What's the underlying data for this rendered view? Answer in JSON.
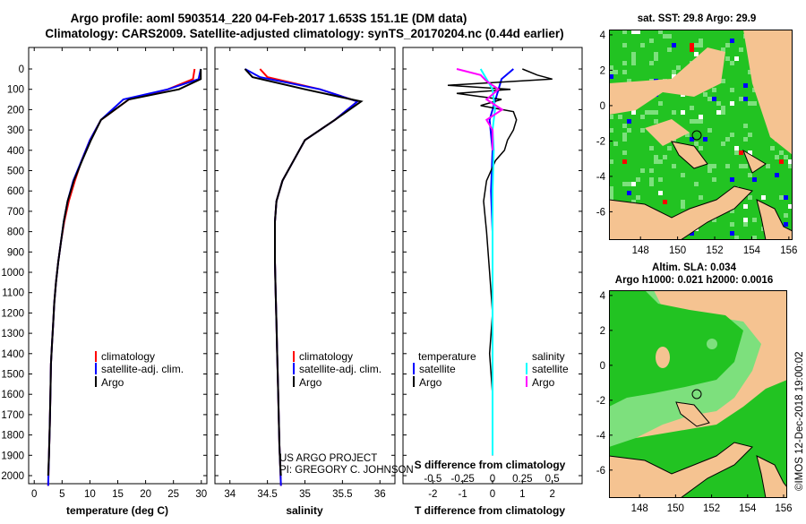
{
  "header": {
    "line1": "Argo profile: aoml 5903514_220 04-Feb-2017 1.653S 151.1E (DM data)",
    "line2": "Climatology: CARS2009. Satellite-adjusted climatology: synTS_20170204.nc (0.44d earlier)"
  },
  "colors": {
    "climatology": "#ff0000",
    "satellite": "#0000ff",
    "argo": "#000000",
    "salinity_satellite": "#00ffff",
    "salinity_argo": "#ff00ff",
    "land": "#f5c391",
    "ocean": "#22c322",
    "light_ocean": "#7de07d"
  },
  "depth_axis": {
    "ticks": [
      "0",
      "100",
      "200",
      "300",
      "400",
      "500",
      "600",
      "700",
      "800",
      "900",
      "1000",
      "1100",
      "1200",
      "1300",
      "1400",
      "1500",
      "1600",
      "1700",
      "1800",
      "1900",
      "2000"
    ]
  },
  "chart_data": [
    {
      "type": "line",
      "title": "temperature profile",
      "xlabel": "temperature (deg C)",
      "xlim": [
        -1,
        31
      ],
      "ylim": [
        0,
        2060
      ],
      "xticks": [
        "0",
        "5",
        "10",
        "15",
        "20",
        "25",
        "30"
      ],
      "legend": {
        "climatology": "climatology",
        "satellite": "satellite-adj. clim.",
        "argo": "Argo"
      },
      "series": [
        {
          "name": "climatology",
          "color": "#ff0000",
          "x": [
            28.8,
            28.5,
            24.0,
            17.0,
            12.0,
            10.0,
            8.5,
            7.3,
            6.2,
            5.4,
            4.8,
            4.3,
            3.9,
            3.6,
            3.4,
            3.2,
            3.0,
            2.9,
            2.8,
            2.65,
            2.5
          ],
          "y": [
            0,
            50,
            100,
            150,
            250,
            350,
            450,
            550,
            650,
            750,
            850,
            950,
            1050,
            1150,
            1250,
            1350,
            1450,
            1600,
            1750,
            1900,
            2050
          ]
        },
        {
          "name": "satellite",
          "color": "#0000ff",
          "x": [
            29.9,
            29.5,
            24.0,
            16.0,
            12.0,
            10.0,
            8.5,
            7.0,
            6.0,
            5.3,
            4.8,
            4.3,
            3.9,
            3.6,
            3.4,
            3.2,
            3.0,
            2.9,
            2.8,
            2.65,
            2.5
          ],
          "y": [
            0,
            50,
            100,
            150,
            250,
            350,
            450,
            550,
            650,
            750,
            850,
            950,
            1050,
            1150,
            1250,
            1350,
            1450,
            1600,
            1750,
            1900,
            2050
          ]
        },
        {
          "name": "Argo",
          "color": "#000000",
          "x": [
            29.9,
            29.9,
            26.0,
            17.0,
            12.0,
            10.2,
            8.6,
            7.1,
            6.0,
            5.3,
            4.8,
            4.3,
            3.9,
            3.6,
            3.4,
            3.2,
            3.0,
            2.9,
            2.8,
            2.65,
            2.5
          ],
          "y": [
            0,
            50,
            100,
            150,
            250,
            350,
            450,
            550,
            650,
            750,
            850,
            950,
            1050,
            1150,
            1250,
            1350,
            1450,
            1600,
            1750,
            1900,
            2000
          ]
        }
      ]
    },
    {
      "type": "line",
      "title": "salinity profile",
      "xlabel": "salinity",
      "xlim": [
        33.8,
        36.2
      ],
      "ylim": [
        0,
        2060
      ],
      "xticks": [
        "34",
        "34.5",
        "35",
        "35.5",
        "36"
      ],
      "legend": {
        "climatology": "climatology",
        "satellite": "satellite-adj. clim.",
        "argo": "Argo"
      },
      "series": [
        {
          "name": "climatology",
          "color": "#ff0000",
          "x": [
            34.4,
            34.5,
            35.2,
            35.7,
            35.4,
            35.0,
            34.85,
            34.7,
            34.62,
            34.6,
            34.6,
            34.6,
            34.61,
            34.62,
            34.63,
            34.64,
            34.65,
            34.66,
            34.67,
            34.68
          ],
          "y": [
            0,
            40,
            100,
            160,
            250,
            350,
            450,
            550,
            650,
            750,
            850,
            950,
            1100,
            1250,
            1400,
            1550,
            1700,
            1850,
            1950,
            2050
          ]
        },
        {
          "name": "satellite",
          "color": "#0000ff",
          "x": [
            34.2,
            34.4,
            35.2,
            35.7,
            35.4,
            35.0,
            34.85,
            34.7,
            34.62,
            34.6,
            34.6,
            34.6,
            34.61,
            34.62,
            34.63,
            34.64,
            34.65,
            34.66,
            34.67,
            34.68
          ],
          "y": [
            0,
            40,
            100,
            160,
            250,
            350,
            450,
            550,
            650,
            750,
            850,
            950,
            1100,
            1250,
            1400,
            1550,
            1700,
            1850,
            1950,
            2050
          ]
        },
        {
          "name": "Argo",
          "color": "#000000",
          "x": [
            34.2,
            34.3,
            35.0,
            35.75,
            35.4,
            35.0,
            34.85,
            34.7,
            34.62,
            34.6,
            34.6,
            34.6,
            34.61,
            34.62,
            34.63,
            34.64,
            34.65,
            34.66,
            34.67,
            34.68
          ],
          "y": [
            0,
            40,
            100,
            160,
            250,
            350,
            450,
            550,
            650,
            750,
            850,
            950,
            1100,
            1250,
            1400,
            1550,
            1700,
            1850,
            1950,
            2000
          ]
        }
      ],
      "credit": [
        "US ARGO PROJECT",
        "PI: GREGORY C. JOHNSON"
      ]
    },
    {
      "type": "line",
      "title": "difference from climatology",
      "xlabel": "T difference from climatology",
      "top_label": "S difference from climatology",
      "xlim": [
        -3,
        3
      ],
      "slim": [
        -0.75,
        0.75
      ],
      "ylim": [
        0,
        2060
      ],
      "xticks": [
        "-2",
        "-1",
        "0",
        "1",
        "2"
      ],
      "sticks": [
        "-0.5",
        "-0.25",
        "0",
        "0.25",
        "0.5"
      ],
      "legend": {
        "temperature": "temperature",
        "salinity": "salinity",
        "satellite": "satellite",
        "argo": "Argo"
      },
      "series": [
        {
          "name": "T satellite",
          "color": "#0000ff",
          "axis": "T",
          "x": [
            0.7,
            0.3,
            0.2,
            0.1,
            -0.1,
            0.0,
            -0.05,
            0.0,
            0.0,
            0.0,
            0.0,
            0.0
          ],
          "y": [
            0,
            50,
            100,
            150,
            250,
            400,
            600,
            800,
            1000,
            1400,
            1800,
            1900
          ]
        },
        {
          "name": "T Argo",
          "color": "#000000",
          "axis": "T",
          "x": [
            1.0,
            1.5,
            2.0,
            -1.5,
            0.6,
            -1.2,
            0.3,
            -0.4,
            0.7,
            0.8,
            0.7,
            0.5,
            0.4,
            0.1,
            -0.2,
            -0.3,
            -0.2,
            -0.1,
            0.0,
            -0.1,
            0.0,
            0.0
          ],
          "y": [
            0,
            30,
            50,
            80,
            100,
            120,
            150,
            180,
            210,
            250,
            300,
            350,
            400,
            450,
            550,
            650,
            800,
            1000,
            1200,
            1400,
            1600,
            1900
          ]
        },
        {
          "name": "S satellite",
          "color": "#00ffff",
          "axis": "S",
          "x": [
            -0.1,
            0.0,
            0.02,
            0.0,
            0.01,
            0.0,
            0.0,
            0.0,
            0.0,
            0.0
          ],
          "y": [
            0,
            100,
            200,
            300,
            400,
            600,
            800,
            1000,
            1400,
            1900
          ]
        },
        {
          "name": "S Argo",
          "color": "#ff00ff",
          "axis": "S",
          "x": [
            -0.3,
            -0.1,
            -0.05,
            0.05,
            -0.05,
            0.08,
            -0.05,
            0.0,
            0.0,
            0.0
          ],
          "y": [
            0,
            30,
            60,
            100,
            150,
            200,
            250,
            300,
            350,
            400
          ]
        }
      ]
    },
    {
      "type": "heatmap",
      "title": "sat. SST: 29.8 Argo: 29.9",
      "xticks": [
        "148",
        "150",
        "152",
        "154",
        "156"
      ],
      "yticks": [
        "4",
        "2",
        "0",
        "-2",
        "-4",
        "-6"
      ],
      "xlim": [
        146.3,
        156.2
      ],
      "ylim": [
        -7.6,
        4.3
      ]
    },
    {
      "type": "heatmap",
      "title": "Altim. SLA: 0.034",
      "subtitle": "Argo h1000: 0.021 h2000: 0.0016",
      "xticks": [
        "148",
        "150",
        "152",
        "154",
        "156"
      ],
      "yticks": [
        "4",
        "2",
        "0",
        "-2",
        "-4",
        "-6"
      ],
      "xlim": [
        146.3,
        156.2
      ],
      "ylim": [
        -7.6,
        4.3
      ]
    }
  ],
  "watermark": "©IMOS 12-Dec-2018 19:00:02"
}
